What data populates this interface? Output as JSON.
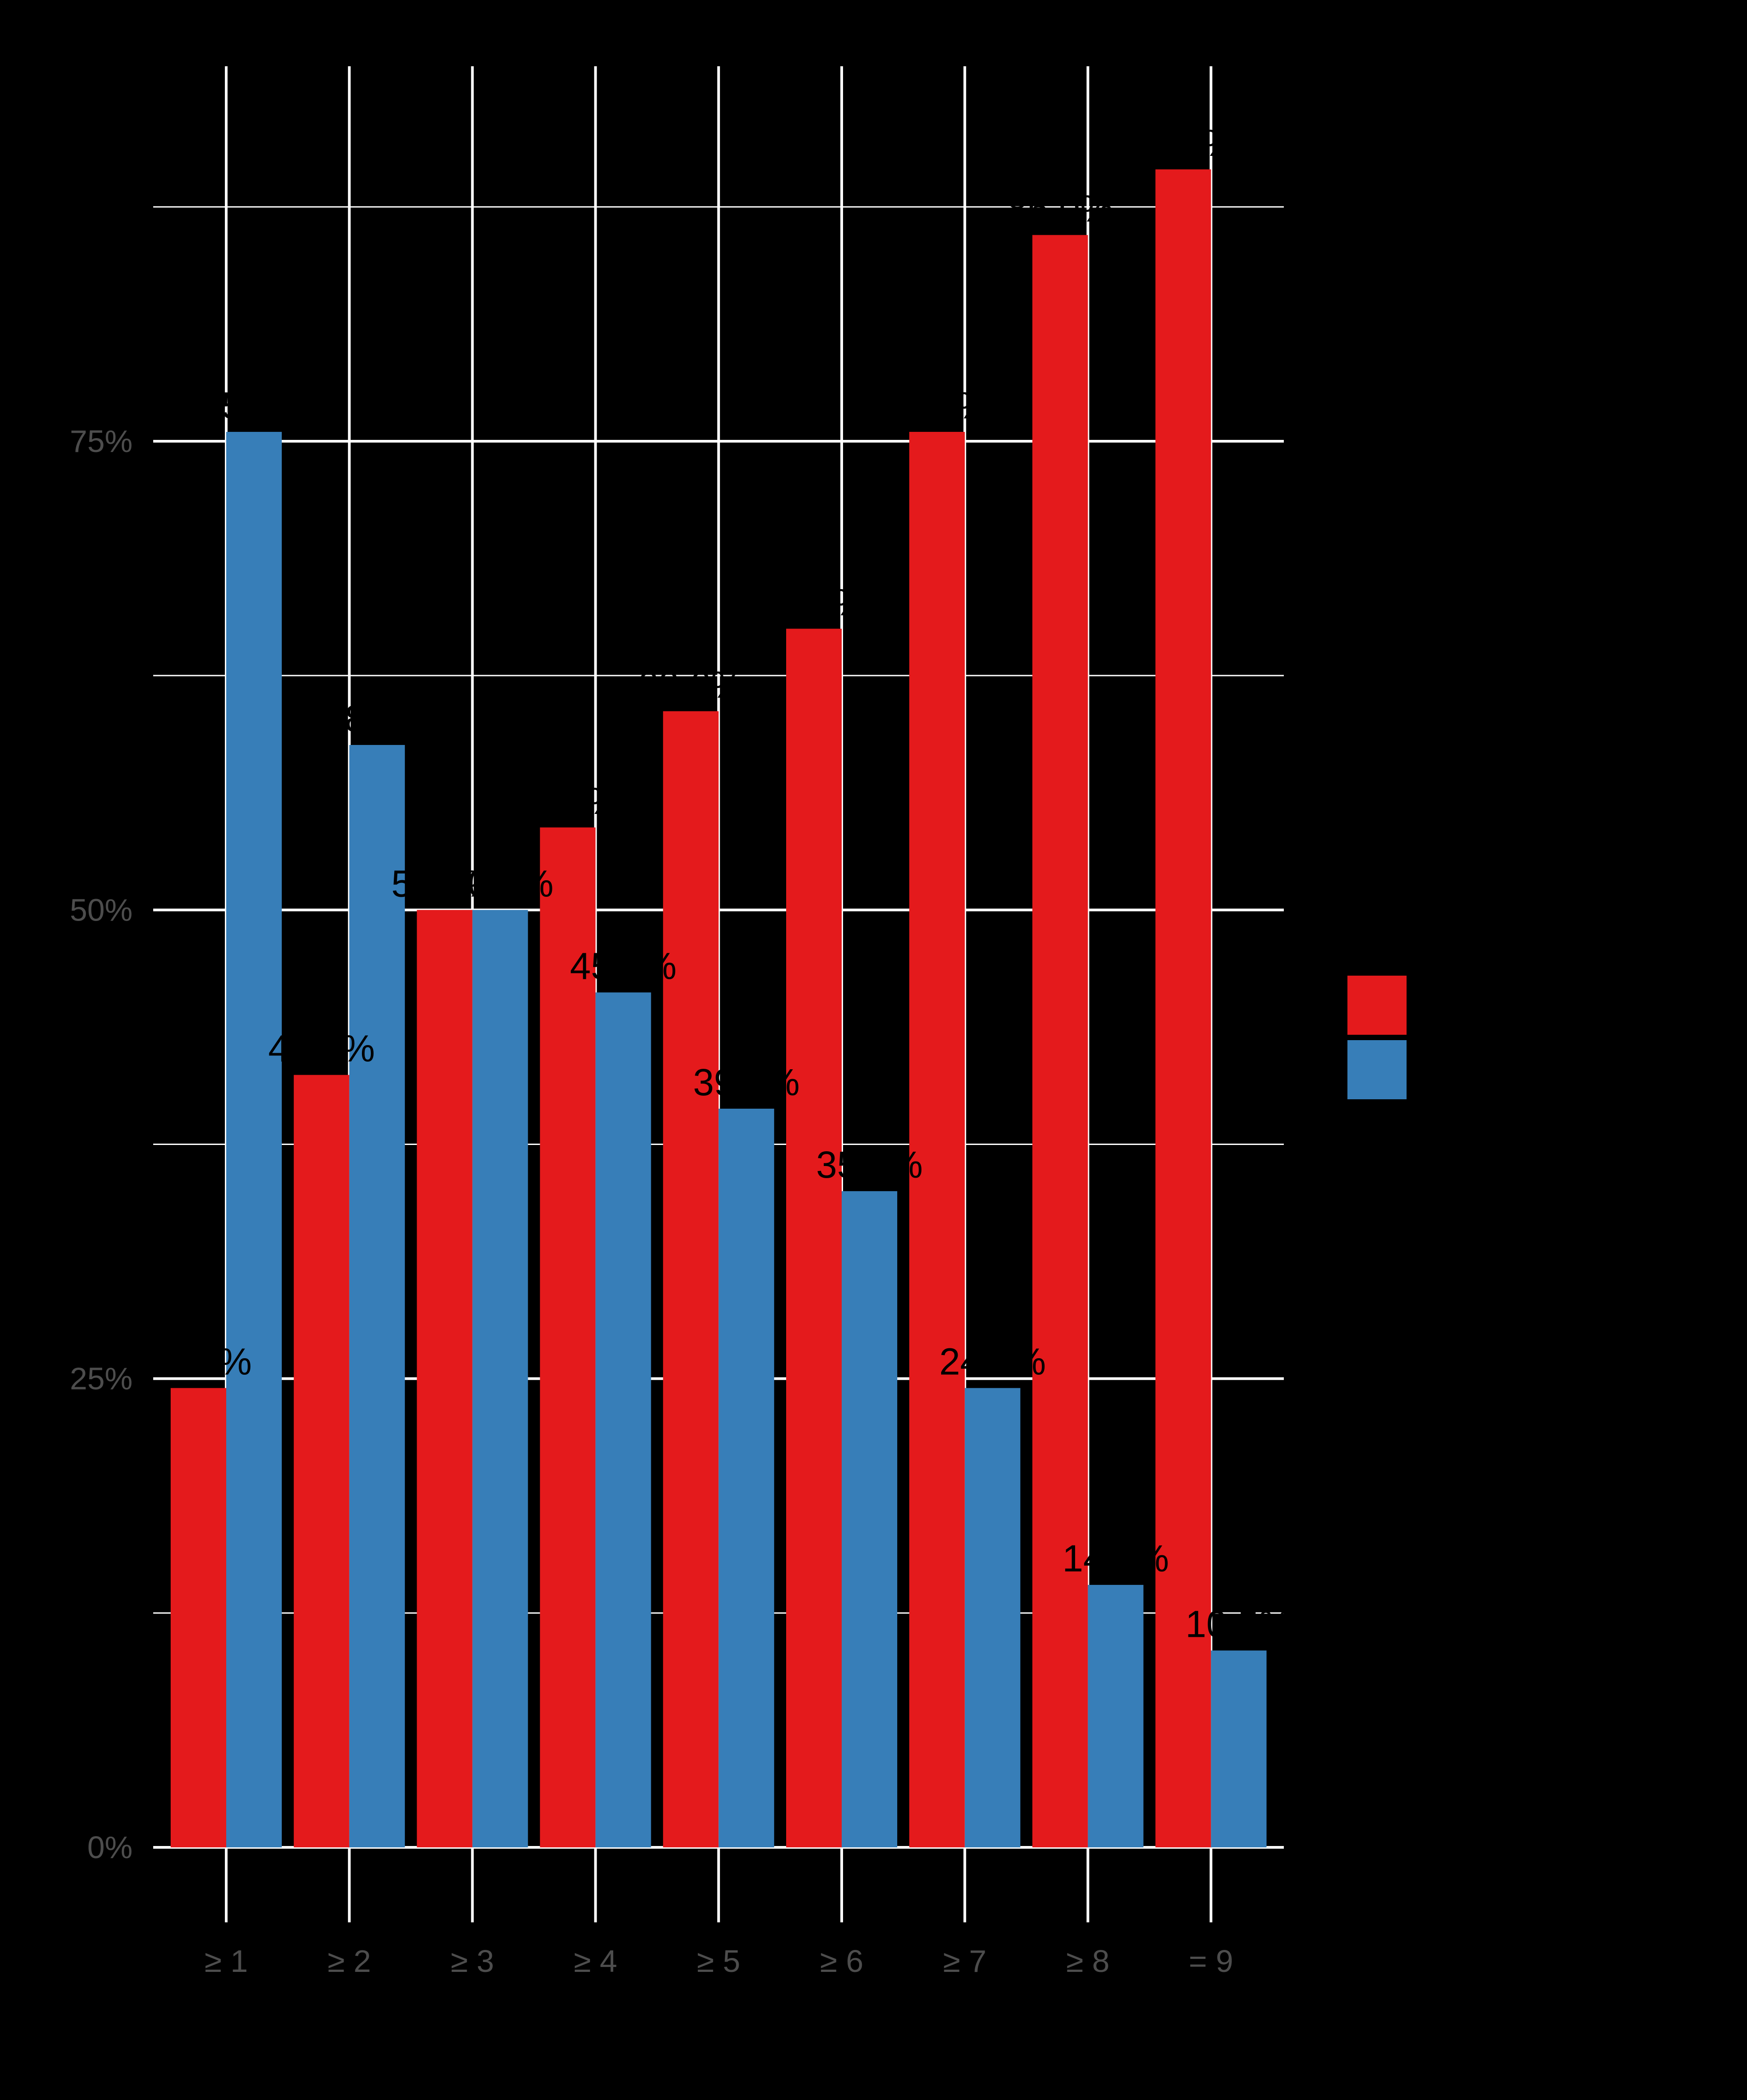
{
  "chart_data": {
    "type": "bar",
    "title": "",
    "xlabel": "",
    "ylabel": "",
    "categories": [
      "≥ 1",
      "≥ 2",
      "≥ 3",
      "≥ 4",
      "≥ 5",
      "≥ 6",
      "≥ 7",
      "≥ 8",
      "= 9"
    ],
    "series": [
      {
        "color": "#e41a1c",
        "values": [
          0.245,
          0.412,
          0.5,
          0.544,
          0.606,
          0.65,
          0.755,
          0.86,
          0.895
        ],
        "labels": [
          "24.5%",
          "41.2%",
          "50.0%",
          "54.4%",
          "60.6%",
          "65.0%",
          "75.5%",
          "86.0%",
          "89.5%"
        ]
      },
      {
        "color": "#377eb8",
        "values": [
          0.755,
          0.588,
          0.5,
          0.456,
          0.394,
          0.35,
          0.245,
          0.14,
          0.105
        ],
        "labels": [
          "75.5%",
          "58.8%",
          "50.0%",
          "45.6%",
          "39.4%",
          "35.0%",
          "24.5%",
          "14.0%",
          "10.5%"
        ]
      }
    ],
    "ylim": [
      -0.04,
      0.95
    ],
    "yticks": [
      0,
      0.25,
      0.5,
      0.75
    ],
    "ytick_labels": [
      "0%",
      "25%",
      "50%",
      "75%"
    ],
    "grid": true,
    "legend_position": "right",
    "legend_title": "",
    "background": "#000000",
    "grid_color": "#ffffff"
  }
}
